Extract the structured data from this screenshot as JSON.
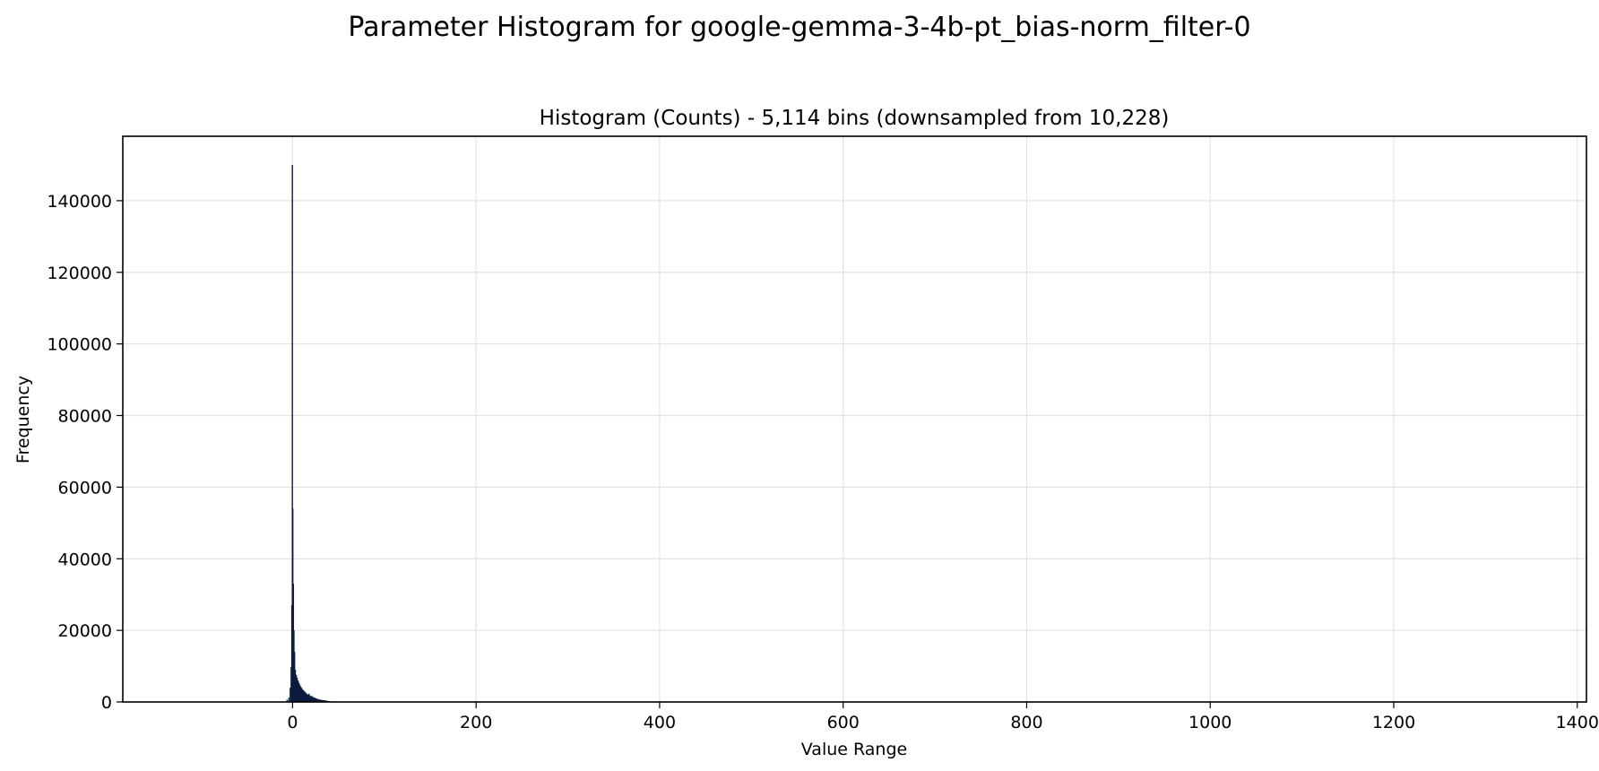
{
  "figure": {
    "suptitle": "Parameter Histogram for google-gemma-3-4b-pt_bias-norm_filter-0"
  },
  "chart_data": {
    "type": "bar",
    "title": "Histogram (Counts) - 5,114 bins (downsampled from 10,228)",
    "xlabel": "Value Range",
    "ylabel": "Frequency",
    "xlim": [
      -185,
      1410
    ],
    "ylim": [
      0,
      158000
    ],
    "xticks": [
      0,
      200,
      400,
      600,
      800,
      1000,
      1200,
      1400
    ],
    "yticks": [
      0,
      20000,
      40000,
      60000,
      80000,
      100000,
      120000,
      140000
    ],
    "grid": true,
    "bar_color": "#0d1b3e",
    "bins": [
      {
        "x": -6,
        "value": 600
      },
      {
        "x": -4,
        "value": 1200
      },
      {
        "x": -2.5,
        "value": 4000
      },
      {
        "x": -1.5,
        "value": 9800
      },
      {
        "x": -0.8,
        "value": 27000
      },
      {
        "x": -0.2,
        "value": 150000
      },
      {
        "x": 0.3,
        "value": 54000
      },
      {
        "x": 0.9,
        "value": 33000
      },
      {
        "x": 1.5,
        "value": 20000
      },
      {
        "x": 2.2,
        "value": 14000
      },
      {
        "x": 3,
        "value": 9000
      },
      {
        "x": 4,
        "value": 7600
      },
      {
        "x": 5,
        "value": 6800
      },
      {
        "x": 6,
        "value": 6000
      },
      {
        "x": 7,
        "value": 5400
      },
      {
        "x": 8,
        "value": 4800
      },
      {
        "x": 9,
        "value": 4300
      },
      {
        "x": 10,
        "value": 3900
      },
      {
        "x": 11,
        "value": 3500
      },
      {
        "x": 12,
        "value": 3200
      },
      {
        "x": 13,
        "value": 3000
      },
      {
        "x": 14,
        "value": 2700
      },
      {
        "x": 15,
        "value": 2400
      },
      {
        "x": 16,
        "value": 2200
      },
      {
        "x": 17,
        "value": 2000
      },
      {
        "x": 18,
        "value": 2300
      },
      {
        "x": 19,
        "value": 1800
      },
      {
        "x": 20,
        "value": 1600
      },
      {
        "x": 21,
        "value": 1700
      },
      {
        "x": 22,
        "value": 1400
      },
      {
        "x": 23,
        "value": 1300
      },
      {
        "x": 24,
        "value": 1200
      },
      {
        "x": 25,
        "value": 1100
      },
      {
        "x": 26,
        "value": 950
      },
      {
        "x": 27,
        "value": 850
      },
      {
        "x": 28,
        "value": 800
      },
      {
        "x": 29,
        "value": 700
      },
      {
        "x": 30,
        "value": 650
      },
      {
        "x": 31,
        "value": 600
      },
      {
        "x": 32,
        "value": 560
      },
      {
        "x": 33,
        "value": 520
      },
      {
        "x": 34,
        "value": 500
      },
      {
        "x": 35,
        "value": 480
      },
      {
        "x": 36,
        "value": 420
      },
      {
        "x": 37,
        "value": 380
      },
      {
        "x": 38,
        "value": 300
      },
      {
        "x": 40,
        "value": 240
      },
      {
        "x": 42,
        "value": 200
      },
      {
        "x": 45,
        "value": 160
      },
      {
        "x": 50,
        "value": 120
      },
      {
        "x": 55,
        "value": 100
      },
      {
        "x": 60,
        "value": 80
      },
      {
        "x": 70,
        "value": 60
      },
      {
        "x": 80,
        "value": 45
      },
      {
        "x": 90,
        "value": 35
      },
      {
        "x": 100,
        "value": 30
      },
      {
        "x": 120,
        "value": 20
      },
      {
        "x": 140,
        "value": 15
      },
      {
        "x": 160,
        "value": 10
      },
      {
        "x": 180,
        "value": 8
      },
      {
        "x": 200,
        "value": 5
      }
    ]
  }
}
